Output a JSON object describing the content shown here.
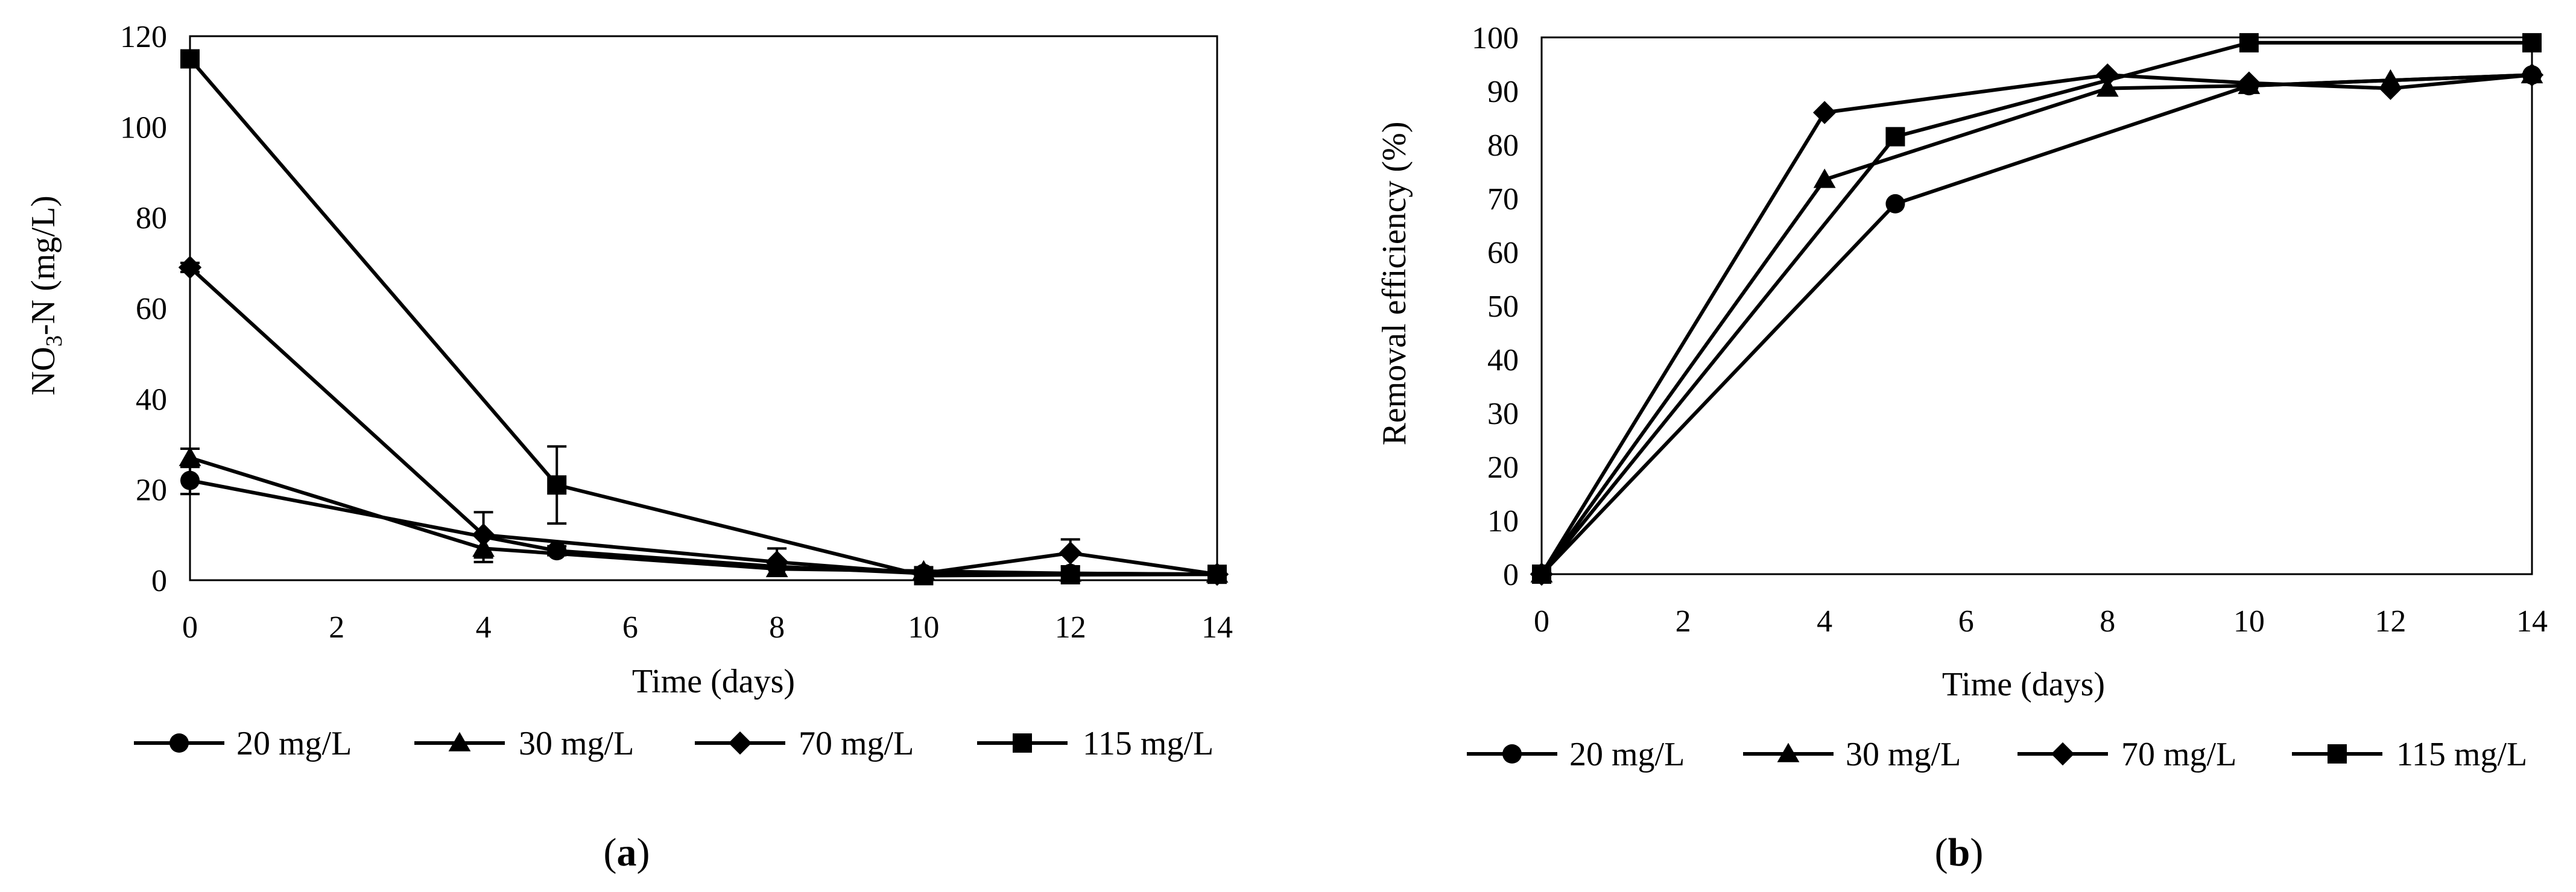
{
  "colors": {
    "line": "#000000",
    "background": "#ffffff"
  },
  "chart_data": [
    {
      "type": "line",
      "panel_label": "a",
      "xlabel": "Time (days)",
      "ylabel_parts": [
        "NO",
        "3",
        "-N (mg/L)"
      ],
      "xlim": [
        0,
        14
      ],
      "ylim": [
        0,
        120
      ],
      "xticks": [
        "0",
        "2",
        "4",
        "6",
        "8",
        "10",
        "12",
        "14"
      ],
      "yticks": [
        "0",
        "20",
        "40",
        "60",
        "80",
        "100",
        "120"
      ],
      "grid": false,
      "legend_position": "bottom",
      "error_bars": true,
      "series": [
        {
          "name": "20 mg/L",
          "marker": "circle",
          "x": [
            0,
            5,
            8,
            10,
            12,
            14
          ],
          "y": [
            22,
            6.5,
            3,
            1.5,
            1.5,
            1.3
          ],
          "err": [
            3,
            1,
            0.5,
            0.3,
            0.3,
            0.2
          ]
        },
        {
          "name": "30 mg/L",
          "marker": "triangle",
          "x": [
            0,
            4,
            8,
            10,
            12,
            14
          ],
          "y": [
            27,
            7,
            2.5,
            2,
            1.5,
            1.3
          ],
          "err": [
            2,
            3,
            0.5,
            0.3,
            0.3,
            0.2
          ]
        },
        {
          "name": "70 mg/L",
          "marker": "diamond",
          "x": [
            0,
            4,
            8,
            10,
            12,
            14
          ],
          "y": [
            69,
            10,
            4,
            1.5,
            6,
            1.3
          ],
          "err": [
            1,
            5,
            3,
            0.5,
            3,
            0.2
          ]
        },
        {
          "name": "115 mg/L",
          "marker": "square",
          "x": [
            0,
            5,
            10,
            12,
            14
          ],
          "y": [
            115,
            21,
            1,
            1.2,
            1.3
          ],
          "err": [
            1,
            8.5,
            0.5,
            0.3,
            0.2
          ]
        }
      ]
    },
    {
      "type": "line",
      "panel_label": "b",
      "xlabel": "Time (days)",
      "ylabel": "Removal efficiency (%)",
      "xlim": [
        0,
        14
      ],
      "ylim": [
        0,
        100
      ],
      "xticks": [
        "0",
        "2",
        "4",
        "6",
        "8",
        "10",
        "12",
        "14"
      ],
      "yticks": [
        "0",
        "10",
        "20",
        "30",
        "40",
        "50",
        "60",
        "70",
        "80",
        "90",
        "100"
      ],
      "grid": false,
      "legend_position": "bottom",
      "error_bars": false,
      "series": [
        {
          "name": "20 mg/L",
          "marker": "circle",
          "x": [
            0,
            5,
            10,
            14
          ],
          "y": [
            0,
            69,
            91,
            93
          ]
        },
        {
          "name": "30 mg/L",
          "marker": "triangle",
          "x": [
            0,
            4,
            8,
            10,
            12,
            14
          ],
          "y": [
            0,
            73.5,
            90.5,
            91,
            92,
            93
          ]
        },
        {
          "name": "70 mg/L",
          "marker": "diamond",
          "x": [
            0,
            4,
            8,
            10,
            12,
            14
          ],
          "y": [
            0,
            86,
            93,
            91.5,
            90.5,
            93
          ]
        },
        {
          "name": "115 mg/L",
          "marker": "square",
          "x": [
            0,
            5,
            10,
            14
          ],
          "y": [
            0,
            81.5,
            99,
            99
          ]
        }
      ]
    }
  ]
}
